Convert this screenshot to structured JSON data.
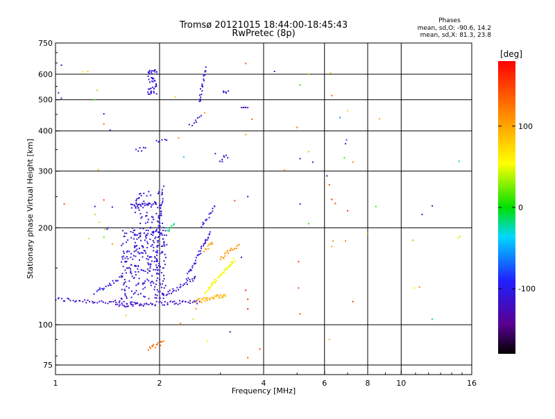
{
  "chart_data": {
    "type": "scatter",
    "title": "Tromsø 20121015 18:44:00-18:45:43",
    "subtitle": "RwPretec (8p)",
    "xlabel": "Frequency [MHz]",
    "ylabel": "Stationary phase Virtual Height [km]",
    "x_scale": "log2",
    "y_scale": "log",
    "xlim": [
      1,
      16
    ],
    "ylim": [
      70,
      750
    ],
    "x_ticks": [
      1,
      2,
      4,
      6,
      8,
      10,
      16
    ],
    "x_tick_labels": [
      "1",
      "2",
      "4",
      "6",
      "8",
      "10",
      "16"
    ],
    "y_ticks": [
      75,
      100,
      200,
      300,
      400,
      500,
      600,
      750
    ],
    "y_tick_labels": [
      "75",
      "100",
      "200",
      "300",
      "400",
      "500",
      "600",
      "750"
    ],
    "grid": true,
    "phases_box": {
      "title": "Phases",
      "line1": "mean, sd,O: -90.6, 14.2",
      "line2": "mean, sd,X: 81.3, 23.8"
    },
    "colorbar": {
      "label": "[deg]",
      "range": [
        -180,
        180
      ],
      "ticks": [
        100,
        0,
        -100
      ],
      "tick_labels": [
        "100",
        "0",
        "-100"
      ],
      "colormap": "rainbow"
    },
    "traces": [
      {
        "kind": "line",
        "x0": 1.0,
        "x1": 1.75,
        "y0": 120,
        "y1": 116,
        "phase": -115,
        "n": 45
      },
      {
        "kind": "line",
        "x0": 1.5,
        "x1": 2.6,
        "y0": 115,
        "y1": 118,
        "phase": -118,
        "n": 60
      },
      {
        "kind": "line",
        "x0": 1.3,
        "x1": 1.55,
        "y0": 126,
        "y1": 140,
        "phase": -105,
        "n": 20
      },
      {
        "kind": "cloud",
        "x": [
          1.55,
          2.1
        ],
        "y": [
          120,
          200
        ],
        "phase": -112,
        "n": 260
      },
      {
        "kind": "cloud",
        "x": [
          1.7,
          2.05
        ],
        "y": [
          190,
          260
        ],
        "phase": -110,
        "n": 70
      },
      {
        "kind": "line",
        "x0": 1.65,
        "x1": 1.95,
        "y0": 234,
        "y1": 236,
        "phase": -110,
        "n": 25
      },
      {
        "kind": "line",
        "x0": 1.95,
        "x1": 2.05,
        "y0": 150,
        "y1": 270,
        "phase": -105,
        "n": 35
      },
      {
        "kind": "line",
        "x0": 2.05,
        "x1": 2.55,
        "y0": 123,
        "y1": 140,
        "phase": -112,
        "n": 30
      },
      {
        "kind": "line",
        "x0": 2.4,
        "x1": 2.8,
        "y0": 140,
        "y1": 195,
        "phase": -108,
        "n": 35
      },
      {
        "kind": "line",
        "x0": 2.65,
        "x1": 2.9,
        "y0": 200,
        "y1": 235,
        "phase": -108,
        "n": 15
      },
      {
        "kind": "line",
        "x0": 2.55,
        "x1": 3.1,
        "y0": 118,
        "y1": 124,
        "phase": 92,
        "n": 35
      },
      {
        "kind": "line",
        "x0": 2.7,
        "x1": 3.3,
        "y0": 125,
        "y1": 160,
        "phase": 55,
        "n": 45
      },
      {
        "kind": "line",
        "x0": 3.0,
        "x1": 3.4,
        "y0": 160,
        "y1": 178,
        "phase": 108,
        "n": 20
      },
      {
        "kind": "line",
        "x0": 2.7,
        "x1": 2.85,
        "y0": 170,
        "y1": 180,
        "phase": 100,
        "n": 10
      },
      {
        "kind": "cloud",
        "x": [
          1.85,
          1.97
        ],
        "y": [
          520,
          620
        ],
        "phase": -110,
        "n": 45
      },
      {
        "kind": "line",
        "x0": 2.6,
        "x1": 2.72,
        "y0": 490,
        "y1": 630,
        "phase": -115,
        "n": 22
      },
      {
        "kind": "line",
        "x0": 2.45,
        "x1": 2.65,
        "y0": 415,
        "y1": 440,
        "phase": -112,
        "n": 8
      },
      {
        "kind": "line",
        "x0": 1.72,
        "x1": 1.82,
        "y0": 348,
        "y1": 352,
        "phase": -112,
        "n": 6
      },
      {
        "kind": "line",
        "x0": 1.95,
        "x1": 2.1,
        "y0": 368,
        "y1": 374,
        "phase": -112,
        "n": 6
      },
      {
        "kind": "line",
        "x0": 3.0,
        "x1": 3.1,
        "y0": 320,
        "y1": 340,
        "phase": -120,
        "n": 6
      },
      {
        "kind": "line",
        "x0": 3.45,
        "x1": 3.6,
        "y0": 470,
        "y1": 478,
        "phase": -125,
        "n": 5
      },
      {
        "kind": "line",
        "x0": 3.05,
        "x1": 3.15,
        "y0": 525,
        "y1": 532,
        "phase": -115,
        "n": 5
      },
      {
        "kind": "line",
        "x0": 2.1,
        "x1": 2.2,
        "y0": 196,
        "y1": 203,
        "phase": -20,
        "n": 8
      },
      {
        "kind": "line",
        "x0": 1.85,
        "x1": 2.05,
        "y0": 84,
        "y1": 88,
        "phase": 132,
        "n": 14
      }
    ],
    "scatter": [
      {
        "x": 1.04,
        "y": 640,
        "phase": -120
      },
      {
        "x": 1.02,
        "y": 525,
        "phase": -110
      },
      {
        "x": 1.04,
        "y": 505,
        "phase": -100
      },
      {
        "x": 1.2,
        "y": 610,
        "phase": 70
      },
      {
        "x": 1.24,
        "y": 612,
        "phase": 80
      },
      {
        "x": 1.3,
        "y": 500,
        "phase": 20
      },
      {
        "x": 1.32,
        "y": 535,
        "phase": 30
      },
      {
        "x": 1.38,
        "y": 452,
        "phase": -130
      },
      {
        "x": 1.38,
        "y": 420,
        "phase": 130
      },
      {
        "x": 1.44,
        "y": 402,
        "phase": -110
      },
      {
        "x": 1.06,
        "y": 237,
        "phase": 140
      },
      {
        "x": 1.3,
        "y": 233,
        "phase": -120
      },
      {
        "x": 1.38,
        "y": 244,
        "phase": 150
      },
      {
        "x": 1.46,
        "y": 232,
        "phase": -120
      },
      {
        "x": 1.33,
        "y": 303,
        "phase": 90
      },
      {
        "x": 1.3,
        "y": 220,
        "phase": 30
      },
      {
        "x": 1.34,
        "y": 208,
        "phase": 80
      },
      {
        "x": 1.25,
        "y": 185,
        "phase": 80
      },
      {
        "x": 1.39,
        "y": 198,
        "phase": 30
      },
      {
        "x": 1.38,
        "y": 187,
        "phase": 20
      },
      {
        "x": 1.42,
        "y": 200,
        "phase": -80
      },
      {
        "x": 1.46,
        "y": 178,
        "phase": 110
      },
      {
        "x": 1.41,
        "y": 198,
        "phase": -120
      },
      {
        "x": 2.22,
        "y": 510,
        "phase": 75
      },
      {
        "x": 2.27,
        "y": 380,
        "phase": 110
      },
      {
        "x": 2.7,
        "y": 455,
        "phase": 110
      },
      {
        "x": 2.35,
        "y": 332,
        "phase": -40
      },
      {
        "x": 2.9,
        "y": 340,
        "phase": -120
      },
      {
        "x": 3.15,
        "y": 330,
        "phase": -125
      },
      {
        "x": 3.55,
        "y": 648,
        "phase": 140
      },
      {
        "x": 3.7,
        "y": 435,
        "phase": 140
      },
      {
        "x": 3.55,
        "y": 390,
        "phase": 110
      },
      {
        "x": 3.6,
        "y": 250,
        "phase": -130
      },
      {
        "x": 3.3,
        "y": 243,
        "phase": 150
      },
      {
        "x": 3.45,
        "y": 162,
        "phase": -125
      },
      {
        "x": 2.55,
        "y": 112,
        "phase": 120
      },
      {
        "x": 2.3,
        "y": 101,
        "phase": 110
      },
      {
        "x": 2.5,
        "y": 104,
        "phase": 40
      },
      {
        "x": 2.75,
        "y": 89,
        "phase": 60
      },
      {
        "x": 3.2,
        "y": 95,
        "phase": -140
      },
      {
        "x": 3.55,
        "y": 128,
        "phase": 160
      },
      {
        "x": 3.6,
        "y": 120,
        "phase": 160
      },
      {
        "x": 3.6,
        "y": 112,
        "phase": 170
      },
      {
        "x": 3.6,
        "y": 79,
        "phase": 140
      },
      {
        "x": 3.9,
        "y": 84,
        "phase": 150
      },
      {
        "x": 4.3,
        "y": 612,
        "phase": -130
      },
      {
        "x": 5.1,
        "y": 555,
        "phase": 10
      },
      {
        "x": 5.0,
        "y": 410,
        "phase": 130
      },
      {
        "x": 4.6,
        "y": 302,
        "phase": 110
      },
      {
        "x": 5.1,
        "y": 328,
        "phase": -120
      },
      {
        "x": 5.4,
        "y": 345,
        "phase": 30
      },
      {
        "x": 5.55,
        "y": 320,
        "phase": -110
      },
      {
        "x": 5.1,
        "y": 237,
        "phase": -115
      },
      {
        "x": 5.4,
        "y": 206,
        "phase": 10
      },
      {
        "x": 5.05,
        "y": 157,
        "phase": 150
      },
      {
        "x": 5.05,
        "y": 130,
        "phase": 150
      },
      {
        "x": 5.1,
        "y": 108,
        "phase": 140
      },
      {
        "x": 5.4,
        "y": 602,
        "phase": 80
      },
      {
        "x": 6.1,
        "y": 290,
        "phase": -120
      },
      {
        "x": 6.2,
        "y": 272,
        "phase": 150
      },
      {
        "x": 6.3,
        "y": 245,
        "phase": 160
      },
      {
        "x": 6.45,
        "y": 238,
        "phase": 150
      },
      {
        "x": 6.25,
        "y": 605,
        "phase": 90
      },
      {
        "x": 6.3,
        "y": 515,
        "phase": 140
      },
      {
        "x": 6.65,
        "y": 440,
        "phase": -60
      },
      {
        "x": 7.0,
        "y": 462,
        "phase": 80
      },
      {
        "x": 6.9,
        "y": 365,
        "phase": -110
      },
      {
        "x": 6.95,
        "y": 375,
        "phase": -80
      },
      {
        "x": 6.85,
        "y": 330,
        "phase": 10
      },
      {
        "x": 7.25,
        "y": 320,
        "phase": 120
      },
      {
        "x": 6.35,
        "y": 182,
        "phase": 110
      },
      {
        "x": 6.9,
        "y": 182,
        "phase": 120
      },
      {
        "x": 6.3,
        "y": 175,
        "phase": 100
      },
      {
        "x": 7.25,
        "y": 118,
        "phase": 160
      },
      {
        "x": 7.0,
        "y": 226,
        "phase": 160
      },
      {
        "x": 8.0,
        "y": 192,
        "phase": 20
      },
      {
        "x": 8.45,
        "y": 233,
        "phase": 10
      },
      {
        "x": 8.65,
        "y": 436,
        "phase": 100
      },
      {
        "x": 6.2,
        "y": 90,
        "phase": 90
      },
      {
        "x": 10.8,
        "y": 183,
        "phase": 20
      },
      {
        "x": 10.9,
        "y": 130,
        "phase": 70
      },
      {
        "x": 11.3,
        "y": 131,
        "phase": 120
      },
      {
        "x": 11.5,
        "y": 220,
        "phase": -120
      },
      {
        "x": 12.3,
        "y": 234,
        "phase": -130
      },
      {
        "x": 12.3,
        "y": 104,
        "phase": -10
      },
      {
        "x": 14.6,
        "y": 186,
        "phase": 60
      },
      {
        "x": 14.8,
        "y": 188,
        "phase": 40
      },
      {
        "x": 14.7,
        "y": 322,
        "phase": -20
      },
      {
        "x": 1.6,
        "y": 107,
        "phase": 80
      }
    ]
  }
}
